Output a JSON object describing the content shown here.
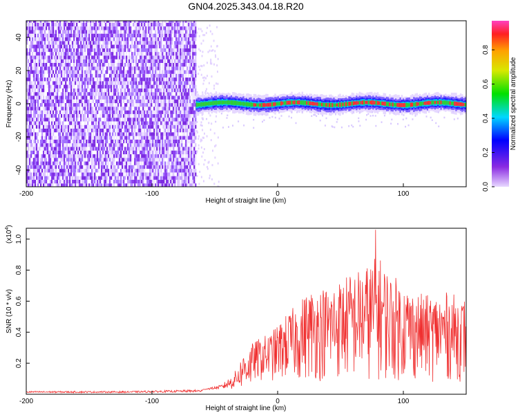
{
  "chart_data": [
    {
      "type": "heatmap",
      "title": "GN04.2025.343.04.18.R20",
      "xlabel": "Height of straight line (km)",
      "ylabel": "Frequency (Hz)",
      "xlim": [
        -200,
        150
      ],
      "ylim": [
        -50,
        50
      ],
      "xticks": [
        -200,
        -100,
        0,
        100
      ],
      "yticks": [
        -40,
        -20,
        0,
        20,
        40
      ],
      "colorbar": {
        "label": "Normalized spectral amplitude",
        "range": [
          0,
          0.97
        ],
        "ticks": [
          "0.0",
          "0.2",
          "0.4",
          "0.6",
          "0.8"
        ],
        "colormap": "rainbow (purple to magenta)"
      },
      "noise_region_x": [
        -200,
        -65
      ],
      "signal_region_x": [
        -65,
        150
      ],
      "signal_center_frequency_hz": 0,
      "signal_band_halfwidth_hz": 5
    },
    {
      "type": "line",
      "xlabel": "Height of straight line (km)",
      "ylabel": "SNR (10 * v/v)",
      "y_scale_note": "(x10^4)",
      "y_scale_base": "(x10",
      "y_scale_exp": "4",
      "xlim": [
        -200,
        150
      ],
      "ylim": [
        0,
        1.07
      ],
      "xticks": [
        -200,
        -100,
        0,
        100
      ],
      "yticks": [
        "0.2",
        "0.4",
        "0.6",
        "0.8",
        "1.0"
      ],
      "color": "#f03030",
      "series": [
        {
          "name": "SNR",
          "envelope": {
            "x": [
              -200,
              -120,
              -60,
              -45,
              -35,
              -25,
              -15,
              -5,
              5,
              15,
              25,
              40,
              55,
              70,
              80,
              90,
              100,
              110,
              120,
              135,
              150
            ],
            "y": [
              0.02,
              0.02,
              0.03,
              0.06,
              0.13,
              0.3,
              0.36,
              0.4,
              0.5,
              0.58,
              0.68,
              0.7,
              0.77,
              0.83,
              0.9,
              0.78,
              0.72,
              0.66,
              0.64,
              0.66,
              0.62
            ]
          },
          "peak": {
            "x": 78,
            "y": 1.06
          }
        }
      ]
    }
  ]
}
